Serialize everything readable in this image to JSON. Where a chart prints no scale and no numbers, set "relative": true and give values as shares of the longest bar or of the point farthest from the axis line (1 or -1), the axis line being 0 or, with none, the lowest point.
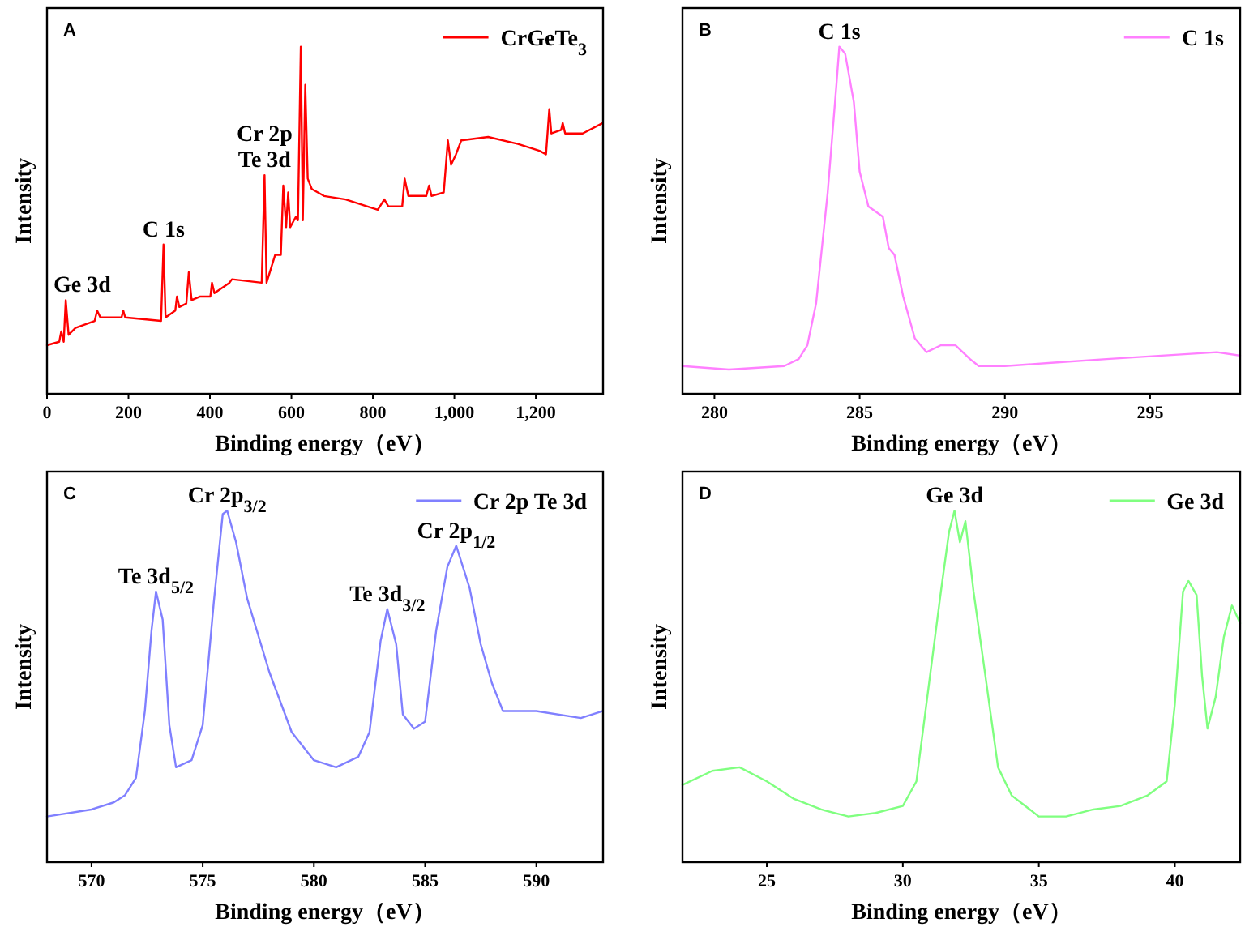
{
  "chart_data": [
    {
      "type": "line",
      "title": "A",
      "xlabel": "Binding energy（eV）",
      "ylabel": "Intensity",
      "relative": true,
      "xlim": [
        0,
        1365
      ],
      "xticks": [
        0,
        200,
        400,
        600,
        800,
        {
          "value": 1000,
          "label": "1,000"
        },
        {
          "value": 1200,
          "label": "1,200"
        }
      ],
      "tick_labels": "x",
      "legend": "top right",
      "grid": false,
      "series": [
        {
          "name": "CrGeTe$_{3}$",
          "color": "#ff0000",
          "x": [
            0,
            30,
            35,
            41,
            46,
            53,
            70,
            117,
            123,
            131,
            183,
            187,
            192,
            280,
            286,
            291,
            315,
            319,
            325,
            342,
            348,
            355,
            375,
            401,
            405,
            411,
            448,
            454,
            527,
            534,
            539,
            560,
            574,
            580,
            587,
            592,
            597,
            611,
            616,
            623,
            628,
            634,
            640,
            650,
            680,
            733,
            812,
            828,
            838,
            872,
            878,
            887,
            931,
            938,
            944,
            974,
            984,
            992,
            1004,
            1017,
            1083,
            1156,
            1209,
            1225,
            1233,
            1238,
            1262,
            1266,
            1272,
            1315,
            1364
          ],
          "values": [
            0.14,
            0.15,
            0.18,
            0.15,
            0.27,
            0.17,
            0.19,
            0.21,
            0.24,
            0.22,
            0.22,
            0.24,
            0.22,
            0.21,
            0.43,
            0.22,
            0.24,
            0.28,
            0.25,
            0.26,
            0.35,
            0.27,
            0.28,
            0.28,
            0.32,
            0.29,
            0.32,
            0.33,
            0.32,
            0.63,
            0.32,
            0.4,
            0.4,
            0.6,
            0.48,
            0.58,
            0.48,
            0.51,
            0.5,
            1.0,
            0.5,
            0.89,
            0.62,
            0.59,
            0.57,
            0.56,
            0.53,
            0.56,
            0.54,
            0.54,
            0.62,
            0.57,
            0.57,
            0.6,
            0.57,
            0.58,
            0.73,
            0.66,
            0.69,
            0.73,
            0.74,
            0.72,
            0.7,
            0.69,
            0.82,
            0.75,
            0.76,
            0.78,
            0.75,
            0.75,
            0.78
          ]
        }
      ],
      "annotations": [
        {
          "text": "Ge 3d",
          "x": 46,
          "y": 0.27
        },
        {
          "text": "C 1s",
          "x": 286,
          "y": 0.43
        },
        {
          "text": "Cr 2p\nTe 3d",
          "x": 534,
          "y": 0.63
        }
      ]
    },
    {
      "type": "line",
      "title": "B",
      "xlabel": "Binding energy（eV）",
      "ylabel": "Intensity",
      "relative": true,
      "xlim": [
        278.9,
        298.1
      ],
      "xticks": [
        280,
        285,
        290,
        295
      ],
      "tick_labels": "x",
      "legend": "top right",
      "grid": false,
      "series": [
        {
          "name": "C 1s",
          "color": "#ff80ff",
          "x": [
            278.9,
            280.5,
            282.4,
            282.9,
            283.2,
            283.5,
            283.9,
            284.2,
            284.3,
            284.5,
            284.8,
            285.0,
            285.3,
            285.8,
            286.0,
            286.2,
            286.5,
            286.9,
            287.3,
            287.8,
            288.3,
            288.8,
            289.1,
            290.0,
            291.7,
            293.5,
            295.4,
            297.3,
            298.1
          ],
          "values": [
            0.08,
            0.07,
            0.08,
            0.1,
            0.14,
            0.26,
            0.58,
            0.89,
            1.0,
            0.98,
            0.84,
            0.64,
            0.54,
            0.51,
            0.42,
            0.4,
            0.28,
            0.16,
            0.12,
            0.14,
            0.14,
            0.1,
            0.08,
            0.08,
            0.09,
            0.1,
            0.11,
            0.12,
            0.11
          ]
        }
      ],
      "annotations": [
        {
          "text": "C 1s",
          "x": 284.3,
          "y": 1.0
        }
      ]
    },
    {
      "type": "line",
      "title": "C",
      "xlabel": "Binding energy（eV）",
      "ylabel": "Intensity",
      "relative": true,
      "xlim": [
        568,
        593
      ],
      "xticks": [
        570,
        575,
        580,
        585,
        590
      ],
      "tick_labels": "x",
      "legend": "top right",
      "grid": false,
      "series": [
        {
          "name": "Cr 2p Te 3d",
          "color": "#8080ff",
          "x": [
            568,
            570,
            571,
            571.5,
            572,
            572.4,
            572.7,
            572.9,
            573.2,
            573.5,
            573.8,
            574.5,
            575,
            575.5,
            575.9,
            576.1,
            576.5,
            577,
            578,
            579,
            580,
            581,
            582,
            582.5,
            583,
            583.3,
            583.7,
            584,
            584.5,
            585,
            585.5,
            586,
            586.4,
            587,
            587.5,
            588,
            588.5,
            590,
            592,
            593
          ],
          "values": [
            0.13,
            0.15,
            0.17,
            0.19,
            0.24,
            0.43,
            0.66,
            0.77,
            0.69,
            0.39,
            0.27,
            0.29,
            0.39,
            0.74,
            0.99,
            1.0,
            0.91,
            0.75,
            0.54,
            0.37,
            0.29,
            0.27,
            0.3,
            0.37,
            0.63,
            0.72,
            0.62,
            0.42,
            0.38,
            0.4,
            0.66,
            0.84,
            0.9,
            0.78,
            0.62,
            0.51,
            0.43,
            0.43,
            0.41,
            0.43
          ]
        }
      ],
      "annotations": [
        {
          "text": "Te 3d$_{5/2}$",
          "x": 572.9,
          "y": 0.77
        },
        {
          "text": "Cr 2p$_{3/2}$",
          "x": 576.1,
          "y": 1.0
        },
        {
          "text": "Te 3d$_{3/2}$",
          "x": 583.3,
          "y": 0.72
        },
        {
          "text": "Cr 2p$_{1/2}$",
          "x": 586.4,
          "y": 0.9
        }
      ]
    },
    {
      "type": "line",
      "title": "D",
      "xlabel": "Binding energy（eV）",
      "ylabel": "Intensity",
      "relative": true,
      "xlim": [
        21.9,
        42.4
      ],
      "xticks": [
        25,
        30,
        35,
        40
      ],
      "tick_labels": "x",
      "legend": "top right",
      "grid": false,
      "series": [
        {
          "name": "Ge 3d",
          "color": "#80ff80",
          "x": [
            21.9,
            23,
            24,
            25,
            26,
            27,
            28,
            29,
            30,
            30.5,
            31,
            31.4,
            31.7,
            31.9,
            32.1,
            32.3,
            32.6,
            33,
            33.5,
            34,
            35,
            36,
            37,
            38,
            39,
            39.7,
            40,
            40.3,
            40.5,
            40.8,
            41.0,
            41.2,
            41.5,
            41.8,
            42.1,
            42.4
          ],
          "values": [
            0.22,
            0.26,
            0.27,
            0.23,
            0.18,
            0.15,
            0.13,
            0.14,
            0.16,
            0.23,
            0.53,
            0.77,
            0.94,
            1.0,
            0.91,
            0.97,
            0.77,
            0.55,
            0.27,
            0.19,
            0.13,
            0.13,
            0.15,
            0.16,
            0.19,
            0.23,
            0.45,
            0.77,
            0.8,
            0.76,
            0.53,
            0.38,
            0.47,
            0.64,
            0.73,
            0.68
          ]
        }
      ],
      "annotations": [
        {
          "text": "Ge 3d",
          "x": 31.9,
          "y": 1.0
        }
      ]
    }
  ]
}
